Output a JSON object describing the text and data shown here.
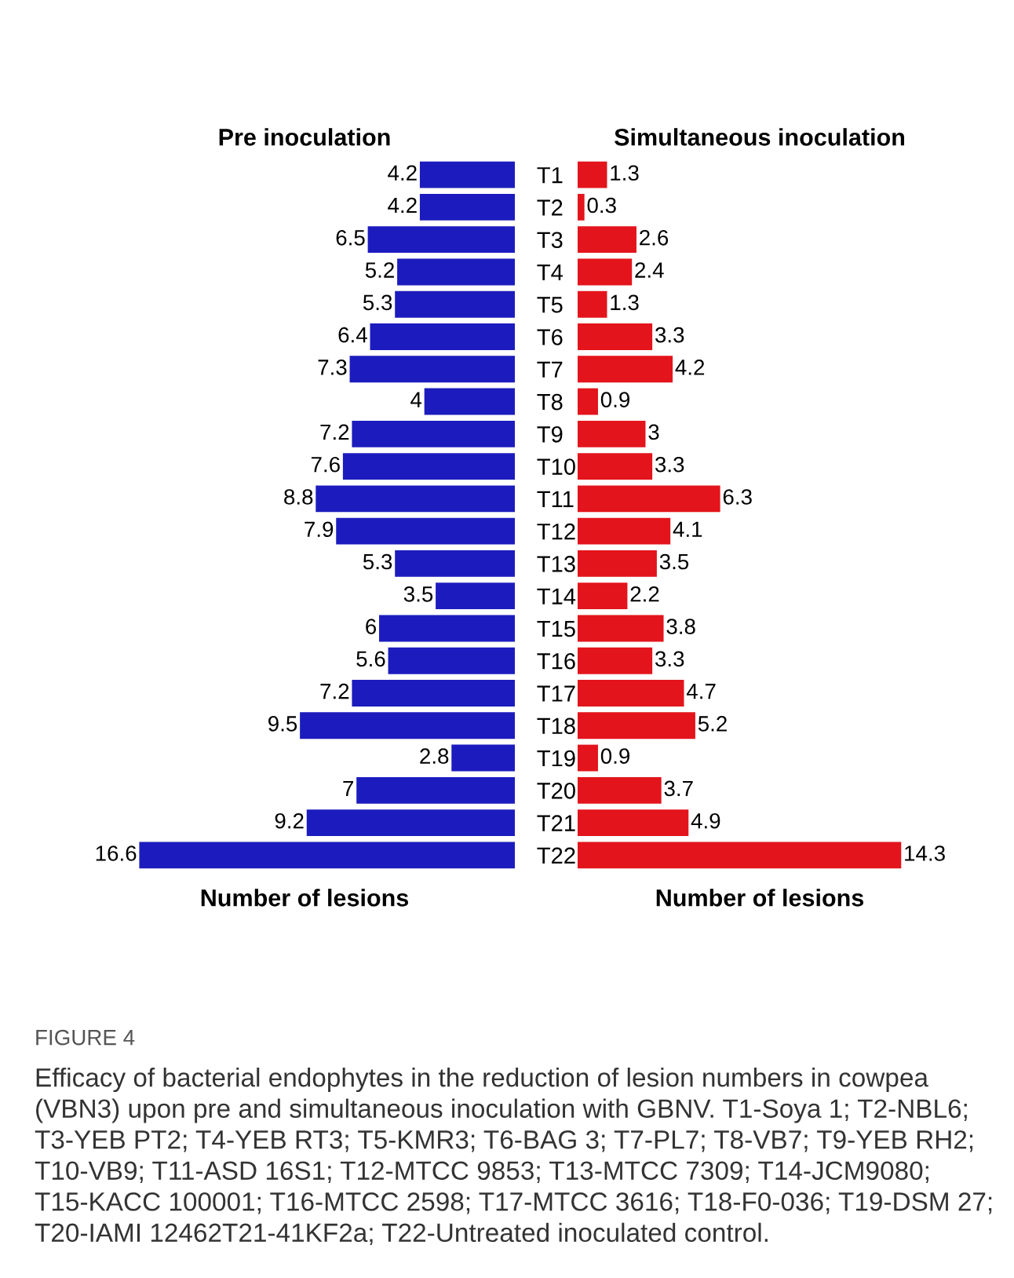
{
  "chart_data": [
    {
      "type": "bar",
      "orientation": "horizontal",
      "title": "Pre inoculation",
      "xlabel": "Number of lesions",
      "categories": [
        "T1",
        "T2",
        "T3",
        "T4",
        "T5",
        "T6",
        "T7",
        "T8",
        "T9",
        "T10",
        "T11",
        "T12",
        "T13",
        "T14",
        "T15",
        "T16",
        "T17",
        "T18",
        "T19",
        "T20",
        "T21",
        "T22"
      ],
      "values": [
        4.2,
        4.2,
        6.5,
        5.2,
        5.3,
        6.4,
        7.3,
        4,
        7.2,
        7.6,
        8.8,
        7.9,
        5.3,
        3.5,
        6,
        5.6,
        7.2,
        9.5,
        2.8,
        7,
        9.2,
        16.6
      ],
      "color": "#1c1cbe",
      "data_labels": true,
      "tick_labels": "y",
      "grid": false,
      "legend": false,
      "annotations": [
        "FIGURE 4",
        "Efficacy of bacterial endophytes in the reduction of lesion numbers in cowpea (VBN3) upon pre and simultaneous inoculation with GBNV. T1-Soya 1; T2-NBL6; T3-YEB PT2; T4-YEB RT3; T5-KMR3; T6-BAG 3; T7-PL7; T8-VB7; T9-YEB RH2; T10-VB9; T11-ASD 16S1; T12-MTCC 9853; T13-MTCC 7309; T14-JCM9080; T15-KACC 100001; T16-MTCC 2598; T17-MTCC 3616; T18-F0-036; T19-DSM 27; T20-IAMI 12462T21-41KF2a; T22-Untreated inoculated control."
      ]
    },
    {
      "type": "bar",
      "orientation": "horizontal",
      "title": "Simultaneous inoculation",
      "xlabel": "Number of lesions",
      "categories": [
        null,
        null,
        null,
        null,
        null,
        null,
        null,
        null,
        null,
        null,
        null,
        null,
        null,
        null,
        null,
        null,
        null,
        null,
        null,
        null,
        null,
        null
      ],
      "values": [
        1.3,
        0.3,
        2.6,
        2.4,
        1.3,
        3.3,
        4.2,
        0.9,
        3,
        3.3,
        6.3,
        4.1,
        3.5,
        2.2,
        3.8,
        3.3,
        4.7,
        5.2,
        0.9,
        3.7,
        4.9,
        14.3
      ],
      "color": "#e3141b",
      "data_labels": true,
      "grid": false,
      "legend": false
    }
  ]
}
